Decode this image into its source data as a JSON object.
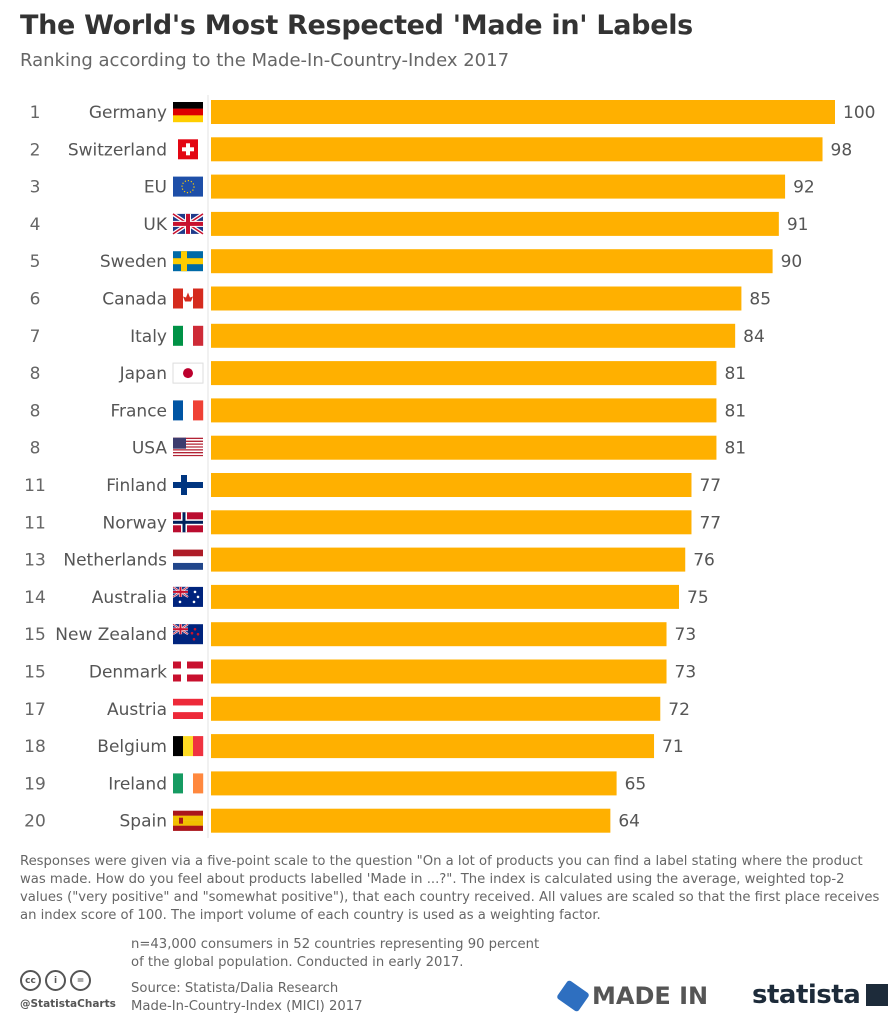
{
  "title": "The World's Most Respected 'Made in' Labels",
  "subtitle": "Ranking according to the Made-In-Country-Index 2017",
  "chart_data": {
    "type": "bar",
    "orientation": "horizontal",
    "title": "The World's Most Respected 'Made in' Labels",
    "subtitle": "Ranking according to the Made-In-Country-Index 2017",
    "xlim": [
      0,
      100
    ],
    "grid": false,
    "bar_color": "#FFB000",
    "ranks": [
      "1",
      "2",
      "3",
      "4",
      "5",
      "6",
      "7",
      "8",
      "8",
      "8",
      "11",
      "11",
      "13",
      "14",
      "15",
      "15",
      "17",
      "18",
      "19",
      "20"
    ],
    "categories": [
      "Germany",
      "Switzerland",
      "EU",
      "UK",
      "Sweden",
      "Canada",
      "Italy",
      "Japan",
      "France",
      "USA",
      "Finland",
      "Norway",
      "Netherlands",
      "Australia",
      "New Zealand",
      "Denmark",
      "Austria",
      "Belgium",
      "Ireland",
      "Spain"
    ],
    "flags": [
      "germany-flag-icon",
      "switzerland-flag-icon",
      "eu-flag-icon",
      "uk-flag-icon",
      "sweden-flag-icon",
      "canada-flag-icon",
      "italy-flag-icon",
      "japan-flag-icon",
      "france-flag-icon",
      "usa-flag-icon",
      "finland-flag-icon",
      "norway-flag-icon",
      "netherlands-flag-icon",
      "australia-flag-icon",
      "new-zealand-flag-icon",
      "denmark-flag-icon",
      "austria-flag-icon",
      "belgium-flag-icon",
      "ireland-flag-icon",
      "spain-flag-icon"
    ],
    "values": [
      100,
      98,
      92,
      91,
      90,
      85,
      84,
      81,
      81,
      81,
      77,
      77,
      76,
      75,
      73,
      73,
      72,
      71,
      65,
      64
    ]
  },
  "footer": {
    "note": "Responses were given via a five-point scale to the question \"On a lot of products you can find a label stating where the product was made. How do you feel about products labelled 'Made in ...?\". The index is calculated using the average, weighted top-2 values (\"very positive\" and \"somewhat positive\"), that each country received. All values are scaled so that the first place receives an index score of 100. The import volume of each country is used as a weighting factor.",
    "sample": "n=43,000 consumers in 52 countries representing 90 percent of the global population. Conducted in early 2017.",
    "source_line1": "Source: Statista/Dalia Research",
    "source_line2": "Made-In-Country-Index (MICI) 2017",
    "handle": "@StatistaCharts",
    "cc": [
      "cc",
      "i",
      "="
    ],
    "logo_madein": "MADE IN",
    "logo_statista": "statista"
  }
}
